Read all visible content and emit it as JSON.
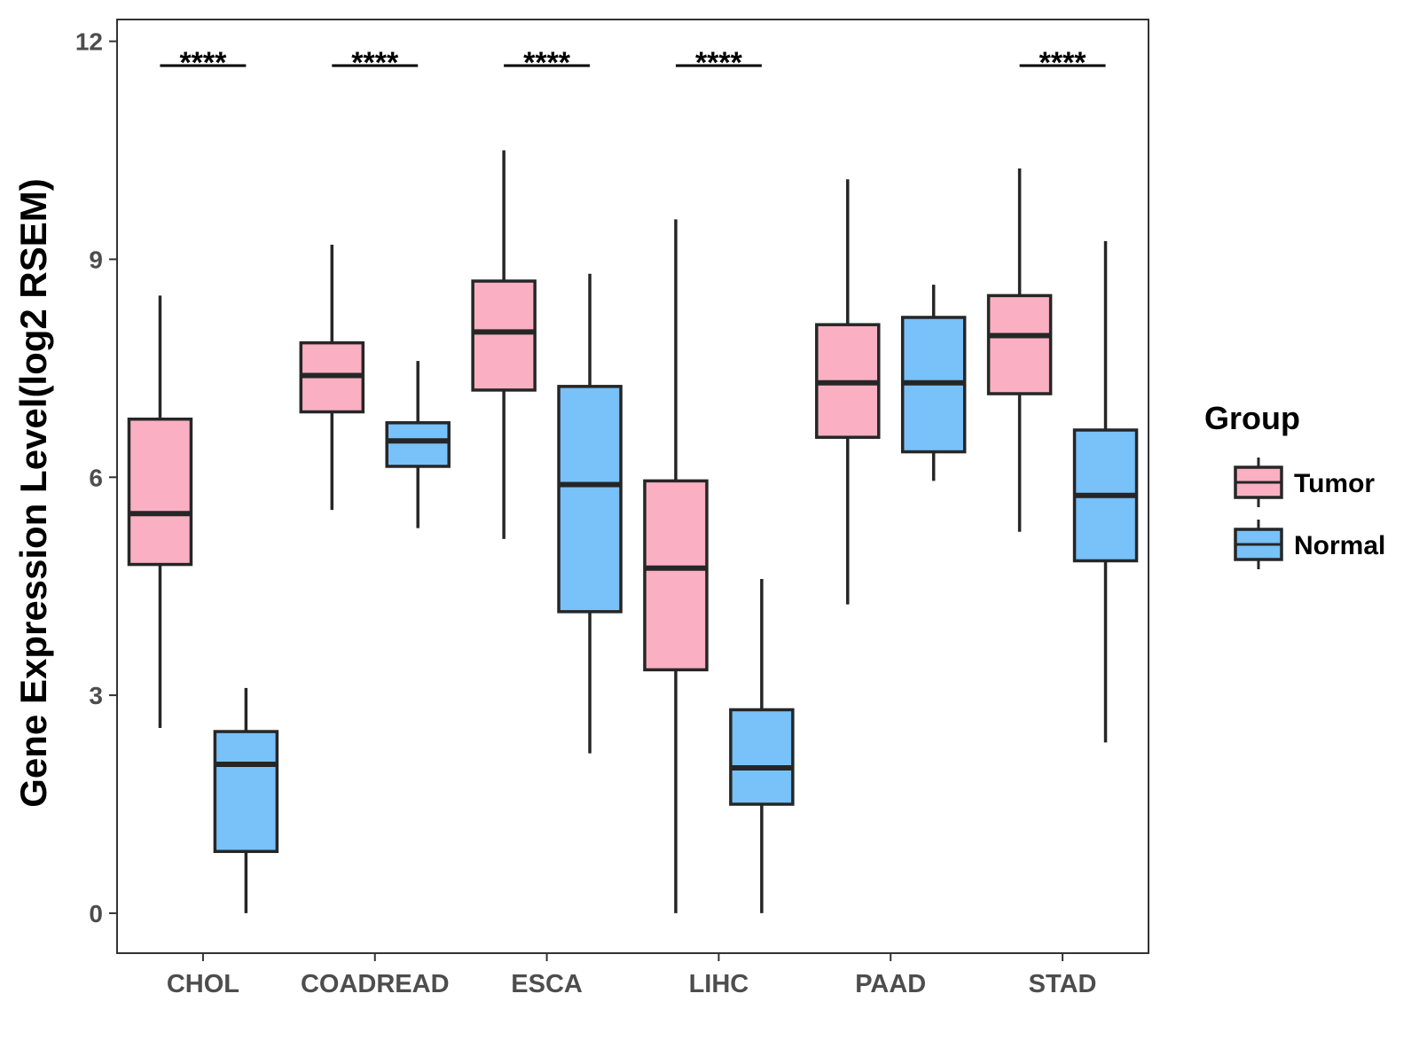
{
  "chart_data": {
    "type": "boxplot",
    "title": "",
    "xlabel": "",
    "ylabel": "Gene Expression Level(log2 RSEM)",
    "ylim": [
      -0.55,
      12.3
    ],
    "yticks": [
      0,
      3,
      6,
      9,
      12
    ],
    "ytick_labels": [
      "0",
      "3",
      "6",
      "9",
      "12"
    ],
    "categories": [
      "CHOL",
      "COADREAD",
      "ESCA",
      "LIHC",
      "PAAD",
      "STAD"
    ],
    "legend": {
      "title": "Group",
      "position": "right",
      "entries": [
        {
          "name": "Tumor",
          "color": "#FAB0C2"
        },
        {
          "name": "Normal",
          "color": "#78C1F9"
        }
      ]
    },
    "series": [
      {
        "name": "Tumor",
        "color": "#FAB0C2",
        "boxes": [
          {
            "min": 2.55,
            "q1": 4.8,
            "median": 5.5,
            "q3": 6.8,
            "max": 8.5
          },
          {
            "min": 5.55,
            "q1": 6.9,
            "median": 7.4,
            "q3": 7.85,
            "max": 9.2
          },
          {
            "min": 5.15,
            "q1": 7.2,
            "median": 8.0,
            "q3": 8.7,
            "max": 10.5
          },
          {
            "min": 0.0,
            "q1": 3.35,
            "median": 4.75,
            "q3": 5.95,
            "max": 9.55
          },
          {
            "min": 4.25,
            "q1": 6.55,
            "median": 7.3,
            "q3": 8.1,
            "max": 10.1
          },
          {
            "min": 5.25,
            "q1": 7.15,
            "median": 7.95,
            "q3": 8.5,
            "max": 10.25
          }
        ]
      },
      {
        "name": "Normal",
        "color": "#78C1F9",
        "boxes": [
          {
            "min": 0.0,
            "q1": 0.85,
            "median": 2.05,
            "q3": 2.5,
            "max": 3.1
          },
          {
            "min": 5.3,
            "q1": 6.15,
            "median": 6.5,
            "q3": 6.75,
            "max": 7.6
          },
          {
            "min": 2.2,
            "q1": 4.15,
            "median": 5.9,
            "q3": 7.25,
            "max": 8.8
          },
          {
            "min": 0.0,
            "q1": 1.5,
            "median": 2.0,
            "q3": 2.8,
            "max": 4.6
          },
          {
            "min": 5.95,
            "q1": 6.35,
            "median": 7.3,
            "q3": 8.2,
            "max": 8.65
          },
          {
            "min": 2.35,
            "q1": 4.85,
            "median": 5.75,
            "q3": 6.65,
            "max": 9.25
          }
        ]
      }
    ],
    "significance": [
      {
        "category": "CHOL",
        "label": "****"
      },
      {
        "category": "COADREAD",
        "label": "****"
      },
      {
        "category": "ESCA",
        "label": "****"
      },
      {
        "category": "LIHC",
        "label": "****"
      },
      {
        "category": "STAD",
        "label": "****"
      }
    ]
  }
}
